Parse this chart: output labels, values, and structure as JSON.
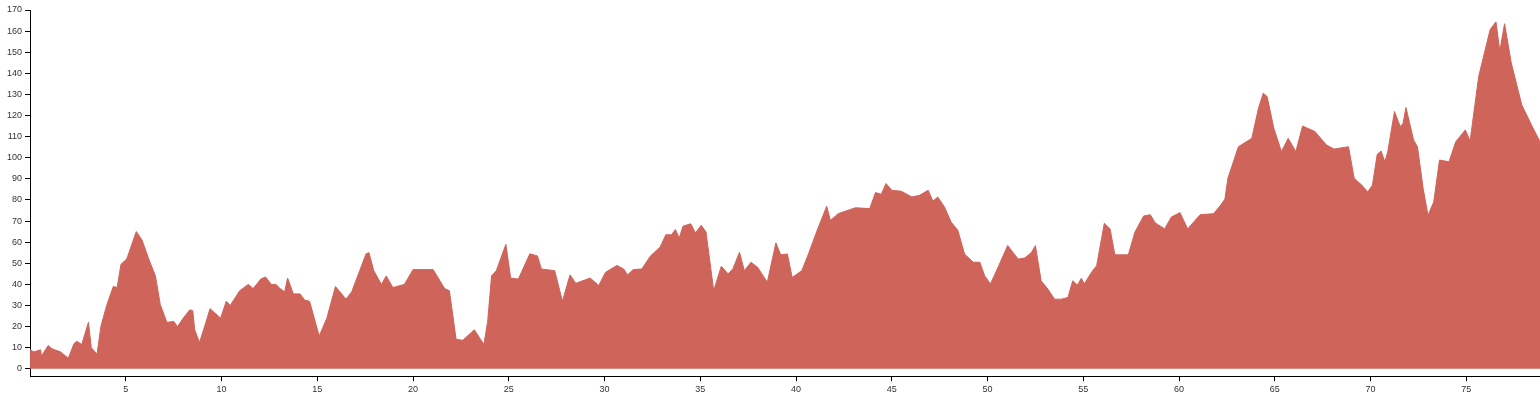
{
  "chart_data": {
    "type": "area",
    "x": [
      0,
      0.2,
      0.55,
      0.6,
      0.8,
      0.95,
      1.15,
      1.6,
      2.0,
      2.3,
      2.45,
      2.7,
      3.05,
      3.2,
      3.5,
      3.7,
      4.0,
      4.35,
      4.55,
      4.75,
      5.05,
      5.55,
      5.85,
      6.2,
      6.55,
      6.8,
      7.15,
      7.5,
      7.7,
      8.0,
      8.35,
      8.5,
      8.6,
      8.85,
      9.15,
      9.4,
      9.95,
      10.25,
      10.45,
      10.95,
      11.4,
      11.65,
      12.05,
      12.3,
      12.6,
      12.85,
      13.05,
      13.3,
      13.45,
      13.75,
      14.1,
      14.35,
      14.6,
      15.1,
      15.5,
      15.95,
      16.5,
      16.8,
      17.55,
      17.7,
      17.95,
      18.35,
      18.6,
      18.95,
      19.55,
      20.0,
      21.05,
      21.65,
      21.9,
      22.25,
      22.6,
      23.2,
      23.7,
      23.9,
      24.1,
      24.35,
      24.85,
      25.1,
      25.5,
      26.1,
      26.5,
      26.7,
      27.4,
      27.8,
      28.2,
      28.5,
      29.25,
      29.7,
      30.05,
      30.65,
      31.0,
      31.2,
      31.5,
      31.95,
      32.4,
      32.9,
      33.2,
      33.5,
      33.7,
      33.9,
      34.1,
      34.5,
      34.75,
      35.05,
      35.3,
      35.7,
      36.1,
      36.45,
      36.7,
      37.05,
      37.3,
      37.65,
      38.0,
      38.5,
      38.95,
      39.2,
      39.55,
      39.8,
      40.3,
      40.65,
      41.1,
      41.6,
      41.8,
      42.2,
      43.1,
      43.85,
      44.15,
      44.45,
      44.7,
      45.0,
      45.5,
      46.05,
      46.45,
      46.9,
      47.15,
      47.4,
      47.75,
      48.1,
      48.45,
      48.8,
      49.25,
      49.6,
      49.85,
      50.15,
      50.35,
      50.55,
      51.05,
      51.6,
      51.95,
      52.3,
      52.5,
      52.8,
      53.15,
      53.5,
      53.85,
      54.2,
      54.45,
      54.7,
      54.9,
      55.05,
      55.45,
      55.7,
      56.1,
      56.4,
      56.65,
      57.35,
      57.7,
      58.15,
      58.5,
      58.75,
      59.25,
      59.6,
      60.05,
      60.45,
      61.1,
      61.8,
      62.2,
      62.4,
      62.55,
      63.1,
      63.8,
      64.15,
      64.4,
      64.6,
      64.95,
      65.35,
      65.7,
      66.1,
      66.45,
      67.1,
      67.7,
      68.1,
      68.85,
      69.15,
      69.55,
      69.85,
      70.1,
      70.35,
      70.55,
      70.75,
      70.9,
      71.25,
      71.55,
      71.7,
      71.85,
      72.25,
      72.45,
      72.75,
      73.0,
      73.3,
      73.6,
      74.1,
      74.45,
      74.95,
      75.2,
      75.65,
      76.25,
      76.55,
      76.75,
      77.0,
      77.35,
      77.9,
      78.4,
      78.85
    ],
    "values": [
      9,
      8,
      9,
      6,
      9,
      11,
      9.5,
      8,
      5,
      12,
      13,
      11.5,
      22,
      10,
      7,
      20,
      30,
      39,
      38.5,
      49.5,
      52,
      65,
      61,
      52,
      44,
      30.5,
      22,
      22.5,
      20,
      24,
      28,
      27.5,
      18.5,
      12.5,
      21,
      28.5,
      24,
      32,
      30,
      37,
      40,
      38,
      42.5,
      43.5,
      40,
      40,
      38,
      36.5,
      43,
      35.5,
      35.5,
      32.5,
      32,
      15.5,
      24,
      39,
      33,
      36.5,
      54.5,
      55,
      46.5,
      40,
      44,
      38.5,
      40,
      47,
      47,
      38,
      37,
      14,
      13.5,
      18.5,
      11.5,
      22.5,
      44,
      46.5,
      59,
      43,
      42.5,
      54.5,
      53.5,
      47.3,
      46.5,
      32,
      44.5,
      40.5,
      43,
      39.5,
      45.7,
      49,
      47.3,
      44.5,
      47,
      47.3,
      53.5,
      57.6,
      63.5,
      63.5,
      66,
      62,
      67.6,
      68.7,
      64.4,
      68,
      64.8,
      37,
      48.6,
      45,
      47.3,
      55.2,
      46.5,
      50.5,
      48,
      41,
      59.7,
      54,
      54.4,
      43.3,
      46.5,
      54.4,
      65.5,
      77,
      70.3,
      73.5,
      76.3,
      75.9,
      83.5,
      82.7,
      87.8,
      84.6,
      84.1,
      81.4,
      82.2,
      84.6,
      79.4,
      81.4,
      76.7,
      69.5,
      65.6,
      54.4,
      50.5,
      50.5,
      44.1,
      40.2,
      44.1,
      48.1,
      58.4,
      52,
      52.5,
      55.2,
      58.4,
      41.7,
      37.8,
      33,
      33,
      33.8,
      41.7,
      39.7,
      42.9,
      40.2,
      46,
      48.9,
      69,
      66.3,
      54,
      54,
      64.8,
      72.4,
      73,
      69.2,
      66.3,
      71.9,
      74,
      66.3,
      73,
      73.5,
      77.8,
      80.6,
      90.2,
      105.2,
      109.2,
      123.5,
      130.6,
      129,
      114,
      102.9,
      109.2,
      102.9,
      115,
      112.4,
      106,
      104.1,
      105.2,
      90.2,
      87,
      83.8,
      87,
      101.6,
      103.2,
      98.1,
      102.9,
      121.9,
      114.8,
      116.3,
      123.8,
      108.4,
      105.2,
      85.4,
      72.7,
      79,
      98.9,
      98.1,
      107.6,
      113.2,
      107.9,
      138.6,
      160.8,
      164.4,
      150.5,
      163.5,
      144.9,
      125,
      115.6,
      107.6
    ],
    "color": "#cf645a",
    "xlim": [
      0,
      78.85
    ],
    "xticks": [
      5,
      10,
      15,
      20,
      25,
      30,
      35,
      40,
      45,
      50,
      55,
      60,
      65,
      70,
      75
    ],
    "ylim": [
      -3.5,
      170
    ],
    "yticks": [
      0,
      10,
      20,
      30,
      40,
      50,
      60,
      70,
      80,
      90,
      100,
      110,
      120,
      130,
      140,
      150,
      160,
      170
    ]
  }
}
